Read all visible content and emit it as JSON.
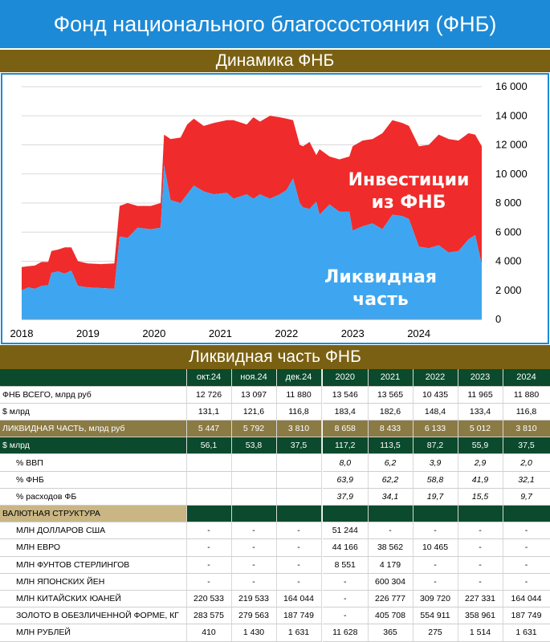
{
  "page_title": "Фонд национального благосостояния (ФНБ)",
  "chart_section_title": "Динамика ФНБ",
  "table_section_title": "Ликвидная часть ФНБ",
  "colors": {
    "banner": "#1c8ad6",
    "section": "#7a6012",
    "liquid": "#3ea6f0",
    "investments": "#f02b2b",
    "label_text": "#ffffff",
    "table_green": "#0b4a2c",
    "table_olive": "#8a7a44",
    "table_beige": "#c9b684"
  },
  "chart_data": {
    "type": "area",
    "stacked": true,
    "x_ticks": [
      "2018",
      "2019",
      "2020",
      "2021",
      "2022",
      "2023",
      "2024"
    ],
    "y_ticks": [
      "0",
      "2 000",
      "4 000",
      "6 000",
      "8 000",
      "10 000",
      "12 000",
      "14 000",
      "16 000"
    ],
    "ylim": [
      0,
      16000
    ],
    "xlim": [
      2018.0,
      2024.95
    ],
    "y_axis_side": "right",
    "grid": "horizontal",
    "series": [
      {
        "name": "Ликвидная часть",
        "label_lines": [
          "Ликвидная",
          "часть"
        ],
        "points": [
          [
            2018.0,
            2000
          ],
          [
            2018.1,
            2200
          ],
          [
            2018.2,
            2100
          ],
          [
            2018.3,
            2300
          ],
          [
            2018.4,
            2350
          ],
          [
            2018.45,
            3200
          ],
          [
            2018.55,
            3300
          ],
          [
            2018.65,
            3150
          ],
          [
            2018.75,
            3350
          ],
          [
            2018.85,
            2300
          ],
          [
            2019.0,
            2200
          ],
          [
            2019.2,
            2150
          ],
          [
            2019.4,
            2100
          ],
          [
            2019.48,
            5700
          ],
          [
            2019.6,
            5600
          ],
          [
            2019.75,
            6300
          ],
          [
            2019.95,
            6200
          ],
          [
            2020.1,
            6300
          ],
          [
            2020.15,
            10600
          ],
          [
            2020.25,
            8200
          ],
          [
            2020.4,
            8000
          ],
          [
            2020.5,
            8600
          ],
          [
            2020.6,
            9200
          ],
          [
            2020.75,
            8800
          ],
          [
            2020.9,
            8600
          ],
          [
            2021.1,
            8700
          ],
          [
            2021.2,
            8300
          ],
          [
            2021.4,
            8600
          ],
          [
            2021.5,
            8300
          ],
          [
            2021.6,
            8600
          ],
          [
            2021.75,
            8300
          ],
          [
            2021.9,
            8600
          ],
          [
            2022.0,
            8900
          ],
          [
            2022.1,
            9700
          ],
          [
            2022.2,
            8000
          ],
          [
            2022.25,
            7700
          ],
          [
            2022.35,
            7600
          ],
          [
            2022.45,
            8100
          ],
          [
            2022.5,
            7200
          ],
          [
            2022.65,
            7900
          ],
          [
            2022.8,
            7400
          ],
          [
            2022.95,
            7400
          ],
          [
            2023.0,
            6100
          ],
          [
            2023.15,
            6400
          ],
          [
            2023.3,
            6600
          ],
          [
            2023.45,
            6200
          ],
          [
            2023.6,
            7200
          ],
          [
            2023.75,
            7100
          ],
          [
            2023.85,
            6900
          ],
          [
            2024.0,
            5000
          ],
          [
            2024.15,
            4900
          ],
          [
            2024.3,
            5100
          ],
          [
            2024.45,
            4600
          ],
          [
            2024.6,
            4700
          ],
          [
            2024.75,
            5500
          ],
          [
            2024.85,
            5800
          ],
          [
            2024.95,
            3800
          ]
        ]
      },
      {
        "name": "Инвестиции из ФНБ",
        "label_lines": [
          "Инвестиции",
          "из ФНБ"
        ],
        "total_points": [
          [
            2018.0,
            3600
          ],
          [
            2018.1,
            3650
          ],
          [
            2018.2,
            3700
          ],
          [
            2018.3,
            3950
          ],
          [
            2018.4,
            3950
          ],
          [
            2018.45,
            4700
          ],
          [
            2018.55,
            4800
          ],
          [
            2018.65,
            4950
          ],
          [
            2018.75,
            4950
          ],
          [
            2018.85,
            4000
          ],
          [
            2019.0,
            3850
          ],
          [
            2019.2,
            3800
          ],
          [
            2019.4,
            3850
          ],
          [
            2019.48,
            7800
          ],
          [
            2019.6,
            8000
          ],
          [
            2019.75,
            7800
          ],
          [
            2019.95,
            7800
          ],
          [
            2020.1,
            8000
          ],
          [
            2020.15,
            12700
          ],
          [
            2020.25,
            12400
          ],
          [
            2020.4,
            12500
          ],
          [
            2020.5,
            13400
          ],
          [
            2020.6,
            13800
          ],
          [
            2020.75,
            13300
          ],
          [
            2020.9,
            13500
          ],
          [
            2021.1,
            13700
          ],
          [
            2021.2,
            13700
          ],
          [
            2021.4,
            13400
          ],
          [
            2021.5,
            13900
          ],
          [
            2021.6,
            13600
          ],
          [
            2021.75,
            14000
          ],
          [
            2021.9,
            13900
          ],
          [
            2022.0,
            13800
          ],
          [
            2022.1,
            13700
          ],
          [
            2022.2,
            12000
          ],
          [
            2022.25,
            11900
          ],
          [
            2022.35,
            12200
          ],
          [
            2022.45,
            11300
          ],
          [
            2022.5,
            11700
          ],
          [
            2022.65,
            11200
          ],
          [
            2022.8,
            11000
          ],
          [
            2022.95,
            11200
          ],
          [
            2023.0,
            11900
          ],
          [
            2023.15,
            12300
          ],
          [
            2023.3,
            12400
          ],
          [
            2023.45,
            12800
          ],
          [
            2023.6,
            13700
          ],
          [
            2023.75,
            13500
          ],
          [
            2023.85,
            13300
          ],
          [
            2024.0,
            11900
          ],
          [
            2024.15,
            12000
          ],
          [
            2024.3,
            12700
          ],
          [
            2024.45,
            12400
          ],
          [
            2024.6,
            12300
          ],
          [
            2024.75,
            12800
          ],
          [
            2024.85,
            12700
          ],
          [
            2024.95,
            11900
          ]
        ]
      }
    ]
  },
  "table": {
    "head": [
      "",
      "окт.24",
      "ноя.24",
      "дек.24",
      "2020",
      "2021",
      "2022",
      "2023",
      "2024"
    ],
    "rows": [
      {
        "style": "plain",
        "label": "ФНБ ВСЕГО, млрд руб",
        "cells": [
          "12 726",
          "13 097",
          "11 880",
          "13 546",
          "13 565",
          "10 435",
          "11 965",
          "11 880"
        ]
      },
      {
        "style": "plain",
        "label": "$ млрд",
        "cells": [
          "131,1",
          "121,6",
          "116,8",
          "183,4",
          "182,6",
          "148,4",
          "133,4",
          "116,8"
        ]
      },
      {
        "style": "olive",
        "label": "ЛИКВИДНАЯ ЧАСТЬ, млрд руб",
        "cells": [
          "5 447",
          "5 792",
          "3 810",
          "8 658",
          "8 433",
          "6 133",
          "5 012",
          "3 810"
        ]
      },
      {
        "style": "green",
        "label": "$ млрд",
        "cells": [
          "56,1",
          "53,8",
          "37,5",
          "117,2",
          "113,5",
          "87,2",
          "55,9",
          "37,5"
        ]
      },
      {
        "style": "pct",
        "label": "% ВВП",
        "cells": [
          "",
          "",
          "",
          "8,0",
          "6,2",
          "3,9",
          "2,9",
          "2,0"
        ]
      },
      {
        "style": "pct",
        "label": "% ФНБ",
        "cells": [
          "",
          "",
          "",
          "63,9",
          "62,2",
          "58,8",
          "41,9",
          "32,1"
        ]
      },
      {
        "style": "pct",
        "label": "% расходов ФБ",
        "cells": [
          "",
          "",
          "",
          "37,9",
          "34,1",
          "19,7",
          "15,5",
          "9,7"
        ]
      },
      {
        "style": "section",
        "label": "ВАЛЮТНАЯ СТРУКТУРА",
        "cells": [
          "",
          "",
          "",
          "",
          "",
          "",
          "",
          ""
        ]
      },
      {
        "style": "cur",
        "label": "МЛН ДОЛЛАРОВ США",
        "cells": [
          "-",
          "-",
          "-",
          "51 244",
          "-",
          "-",
          "-",
          "-"
        ]
      },
      {
        "style": "cur",
        "label": "МЛН ЕВРО",
        "cells": [
          "-",
          "-",
          "-",
          "44 166",
          "38 562",
          "10 465",
          "-",
          "-"
        ]
      },
      {
        "style": "cur",
        "label": "МЛН ФУНТОВ СТЕРЛИНГОВ",
        "cells": [
          "-",
          "-",
          "-",
          "8 551",
          "4 179",
          "-",
          "-",
          "-"
        ]
      },
      {
        "style": "cur",
        "label": "МЛН ЯПОНСКИХ ЙЕН",
        "cells": [
          "-",
          "-",
          "-",
          "-",
          "600 304",
          "-",
          "-",
          "-"
        ]
      },
      {
        "style": "cur",
        "label": "МЛН КИТАЙСКИХ ЮАНЕЙ",
        "cells": [
          "220 533",
          "219 533",
          "164 044",
          "-",
          "226 777",
          "309 720",
          "227 331",
          "164 044"
        ]
      },
      {
        "style": "cur",
        "label": "ЗОЛОТО В ОБЕЗЛИЧЕННОЙ ФОРМЕ, КГ",
        "cells": [
          "283 575",
          "279 563",
          "187 749",
          "-",
          "405 708",
          "554 911",
          "358 961",
          "187 749"
        ]
      },
      {
        "style": "cur",
        "label": "МЛН РУБЛЕЙ",
        "cells": [
          "410",
          "1 430",
          "1 631",
          "11 628",
          "365",
          "275",
          "1 514",
          "1 631"
        ]
      }
    ]
  }
}
